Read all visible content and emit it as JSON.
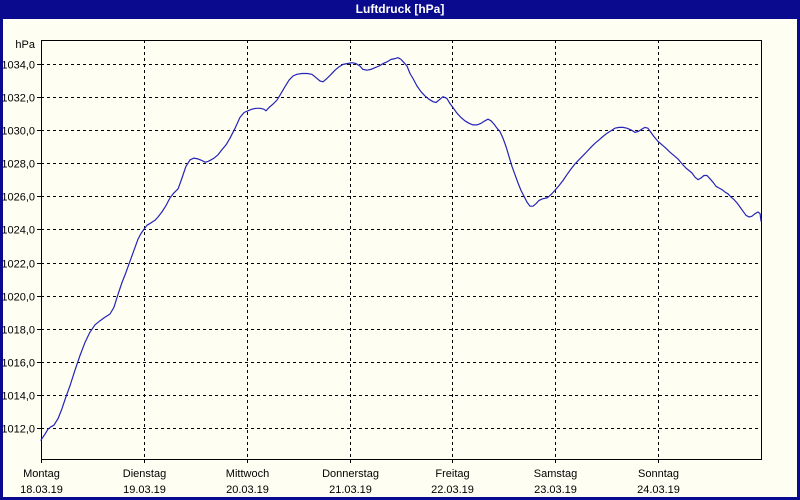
{
  "window": {
    "title": "Luftdruck [hPa]"
  },
  "colors": {
    "titlebar_bg": "#0a0a8f",
    "titlebar_text": "#ffffff",
    "content_bg": "#fffef2",
    "axis": "#000000",
    "grid": "#000000",
    "line": "#2424b8",
    "label": "#000000"
  },
  "chart_data": {
    "type": "line",
    "title": "Luftdruck [hPa]",
    "ylabel": "hPa",
    "x_unit": "hours since Monday 00:00",
    "xlim": [
      0,
      168
    ],
    "ylim": [
      1010.16,
      1035.42
    ],
    "grid": "dashed",
    "legend_position": "none",
    "y_ticks": [
      {
        "value": 1034,
        "label": "1034,0"
      },
      {
        "value": 1032,
        "label": "1032,0"
      },
      {
        "value": 1030,
        "label": "1030,0"
      },
      {
        "value": 1028,
        "label": "1028,0"
      },
      {
        "value": 1026,
        "label": "1026,0"
      },
      {
        "value": 1024,
        "label": "1024,0"
      },
      {
        "value": 1022,
        "label": "1022,0"
      },
      {
        "value": 1020,
        "label": "1020,0"
      },
      {
        "value": 1018,
        "label": "1018,0"
      },
      {
        "value": 1016,
        "label": "1016,0"
      },
      {
        "value": 1014,
        "label": "1014,0"
      },
      {
        "value": 1012,
        "label": "1012,0"
      }
    ],
    "x_ticks": [
      {
        "hour": 0,
        "day": "Montag",
        "date": "18.03.19"
      },
      {
        "hour": 24,
        "day": "Dienstag",
        "date": "19.03.19"
      },
      {
        "hour": 48,
        "day": "Mittwoch",
        "date": "20.03.19"
      },
      {
        "hour": 72,
        "day": "Donnerstag",
        "date": "21.03.19"
      },
      {
        "hour": 96,
        "day": "Freitag",
        "date": "22.03.19"
      },
      {
        "hour": 120,
        "day": "Samstag",
        "date": "23.03.19"
      },
      {
        "hour": 144,
        "day": "Sonntag",
        "date": "24.03.19"
      }
    ],
    "series": [
      {
        "name": "Luftdruck",
        "color": "#2424b8",
        "points": [
          [
            0,
            1011.3
          ],
          [
            0.9,
            1011.65
          ],
          [
            1.6,
            1011.95
          ],
          [
            2.3,
            1012.1
          ],
          [
            3,
            1012.2
          ],
          [
            4,
            1012.6
          ],
          [
            4.9,
            1013.2
          ],
          [
            5.8,
            1013.9
          ],
          [
            6.8,
            1014.6
          ],
          [
            7.9,
            1015.5
          ],
          [
            9.1,
            1016.4
          ],
          [
            10.3,
            1017.2
          ],
          [
            11.4,
            1017.8
          ],
          [
            12.6,
            1018.25
          ],
          [
            13.8,
            1018.5
          ],
          [
            14.9,
            1018.7
          ],
          [
            16.1,
            1018.9
          ],
          [
            17,
            1019.3
          ],
          [
            18,
            1020.1
          ],
          [
            18.9,
            1020.8
          ],
          [
            19.8,
            1021.4
          ],
          [
            20.8,
            1022.1
          ],
          [
            21.7,
            1022.75
          ],
          [
            22.6,
            1023.4
          ],
          [
            23.3,
            1023.75
          ],
          [
            24,
            1024.0
          ],
          [
            24.7,
            1024.25
          ],
          [
            25.7,
            1024.4
          ],
          [
            26.6,
            1024.55
          ],
          [
            27.3,
            1024.75
          ],
          [
            28.2,
            1025.05
          ],
          [
            29.2,
            1025.45
          ],
          [
            30.1,
            1025.9
          ],
          [
            31,
            1026.2
          ],
          [
            32,
            1026.45
          ],
          [
            32.9,
            1027.1
          ],
          [
            33.8,
            1027.8
          ],
          [
            34.8,
            1028.2
          ],
          [
            35.7,
            1028.3
          ],
          [
            36.6,
            1028.25
          ],
          [
            37.6,
            1028.15
          ],
          [
            38.3,
            1028.05
          ],
          [
            39,
            1028.1
          ],
          [
            39.7,
            1028.2
          ],
          [
            40.4,
            1028.3
          ],
          [
            41.3,
            1028.5
          ],
          [
            42.2,
            1028.8
          ],
          [
            43.2,
            1029.1
          ],
          [
            44.1,
            1029.5
          ],
          [
            45.3,
            1030.1
          ],
          [
            46.4,
            1030.75
          ],
          [
            47.4,
            1031.05
          ],
          [
            48.3,
            1031.15
          ],
          [
            49.2,
            1031.25
          ],
          [
            50.2,
            1031.3
          ],
          [
            51.1,
            1031.3
          ],
          [
            52,
            1031.25
          ],
          [
            52.5,
            1031.15
          ],
          [
            53.2,
            1031.35
          ],
          [
            54.1,
            1031.55
          ],
          [
            55.1,
            1031.8
          ],
          [
            56,
            1032.2
          ],
          [
            56.9,
            1032.6
          ],
          [
            57.9,
            1033.0
          ],
          [
            58.8,
            1033.25
          ],
          [
            59.7,
            1033.35
          ],
          [
            60.9,
            1033.4
          ],
          [
            62.1,
            1033.4
          ],
          [
            63.2,
            1033.35
          ],
          [
            64.2,
            1033.15
          ],
          [
            65.1,
            1032.95
          ],
          [
            65.8,
            1032.9
          ],
          [
            66.7,
            1033.1
          ],
          [
            67.7,
            1033.35
          ],
          [
            68.6,
            1033.6
          ],
          [
            69.5,
            1033.8
          ],
          [
            70.5,
            1033.95
          ],
          [
            71.4,
            1034.0
          ],
          [
            72.6,
            1034.05
          ],
          [
            73.5,
            1034.0
          ],
          [
            74.4,
            1033.85
          ],
          [
            75.1,
            1033.65
          ],
          [
            76.1,
            1033.6
          ],
          [
            77,
            1033.65
          ],
          [
            77.9,
            1033.75
          ],
          [
            78.9,
            1033.85
          ],
          [
            79.8,
            1034.0
          ],
          [
            80.7,
            1034.1
          ],
          [
            81.7,
            1034.25
          ],
          [
            82.6,
            1034.3
          ],
          [
            83.3,
            1034.35
          ],
          [
            84,
            1034.25
          ],
          [
            84.7,
            1034.05
          ],
          [
            85.4,
            1033.85
          ],
          [
            86.1,
            1033.4
          ],
          [
            86.8,
            1033.1
          ],
          [
            87.7,
            1032.65
          ],
          [
            88.7,
            1032.3
          ],
          [
            89.6,
            1032.05
          ],
          [
            90.5,
            1031.85
          ],
          [
            91.5,
            1031.7
          ],
          [
            92.2,
            1031.65
          ],
          [
            93.1,
            1031.85
          ],
          [
            93.8,
            1032.0
          ],
          [
            94.7,
            1031.9
          ],
          [
            95.4,
            1031.6
          ],
          [
            96.1,
            1031.35
          ],
          [
            97.1,
            1031.0
          ],
          [
            98,
            1030.75
          ],
          [
            98.9,
            1030.55
          ],
          [
            99.9,
            1030.4
          ],
          [
            100.8,
            1030.3
          ],
          [
            101.7,
            1030.3
          ],
          [
            102.7,
            1030.4
          ],
          [
            103.6,
            1030.55
          ],
          [
            104.3,
            1030.65
          ],
          [
            105,
            1030.55
          ],
          [
            105.7,
            1030.35
          ],
          [
            106.4,
            1030.1
          ],
          [
            107.1,
            1029.9
          ],
          [
            107.8,
            1029.5
          ],
          [
            108.5,
            1029.0
          ],
          [
            109.2,
            1028.4
          ],
          [
            109.9,
            1027.8
          ],
          [
            110.6,
            1027.3
          ],
          [
            111.3,
            1026.8
          ],
          [
            112,
            1026.35
          ],
          [
            112.7,
            1026.0
          ],
          [
            113.4,
            1025.65
          ],
          [
            114.1,
            1025.4
          ],
          [
            114.8,
            1025.4
          ],
          [
            115.5,
            1025.55
          ],
          [
            116.2,
            1025.75
          ],
          [
            117.1,
            1025.85
          ],
          [
            118.1,
            1025.9
          ],
          [
            119,
            1026.1
          ],
          [
            119.9,
            1026.35
          ],
          [
            120.9,
            1026.65
          ],
          [
            121.8,
            1026.95
          ],
          [
            122.7,
            1027.3
          ],
          [
            123.7,
            1027.65
          ],
          [
            124.6,
            1027.95
          ],
          [
            125.5,
            1028.2
          ],
          [
            126.5,
            1028.45
          ],
          [
            127.4,
            1028.7
          ],
          [
            128.3,
            1028.95
          ],
          [
            129.3,
            1029.2
          ],
          [
            130.2,
            1029.4
          ],
          [
            131.1,
            1029.6
          ],
          [
            132.1,
            1029.8
          ],
          [
            133,
            1029.95
          ],
          [
            133.9,
            1030.1
          ],
          [
            134.9,
            1030.15
          ],
          [
            135.8,
            1030.15
          ],
          [
            136.7,
            1030.1
          ],
          [
            137.7,
            1030.0
          ],
          [
            138.6,
            1029.85
          ],
          [
            139.3,
            1029.9
          ],
          [
            140.2,
            1030.05
          ],
          [
            140.9,
            1030.15
          ],
          [
            141.6,
            1030.1
          ],
          [
            142.3,
            1029.85
          ],
          [
            143,
            1029.6
          ],
          [
            144,
            1029.3
          ],
          [
            144.9,
            1029.1
          ],
          [
            145.8,
            1028.9
          ],
          [
            146.8,
            1028.65
          ],
          [
            147.7,
            1028.45
          ],
          [
            148.6,
            1028.25
          ],
          [
            149.6,
            1027.95
          ],
          [
            150.5,
            1027.7
          ],
          [
            151.2,
            1027.55
          ],
          [
            151.9,
            1027.4
          ],
          [
            152.6,
            1027.15
          ],
          [
            153.3,
            1027.0
          ],
          [
            154,
            1027.1
          ],
          [
            154.7,
            1027.25
          ],
          [
            155.4,
            1027.25
          ],
          [
            156.1,
            1027.05
          ],
          [
            156.8,
            1026.85
          ],
          [
            157.5,
            1026.6
          ],
          [
            158.2,
            1026.5
          ],
          [
            158.9,
            1026.4
          ],
          [
            159.6,
            1026.25
          ],
          [
            160.3,
            1026.15
          ],
          [
            161,
            1025.95
          ],
          [
            161.7,
            1025.8
          ],
          [
            162.4,
            1025.6
          ],
          [
            163.1,
            1025.35
          ],
          [
            163.8,
            1025.1
          ],
          [
            164.5,
            1024.85
          ],
          [
            165.2,
            1024.75
          ],
          [
            165.9,
            1024.8
          ],
          [
            166.6,
            1024.95
          ],
          [
            167.3,
            1025.05
          ],
          [
            167.8,
            1024.95
          ],
          [
            168,
            1024.5
          ]
        ]
      }
    ]
  }
}
